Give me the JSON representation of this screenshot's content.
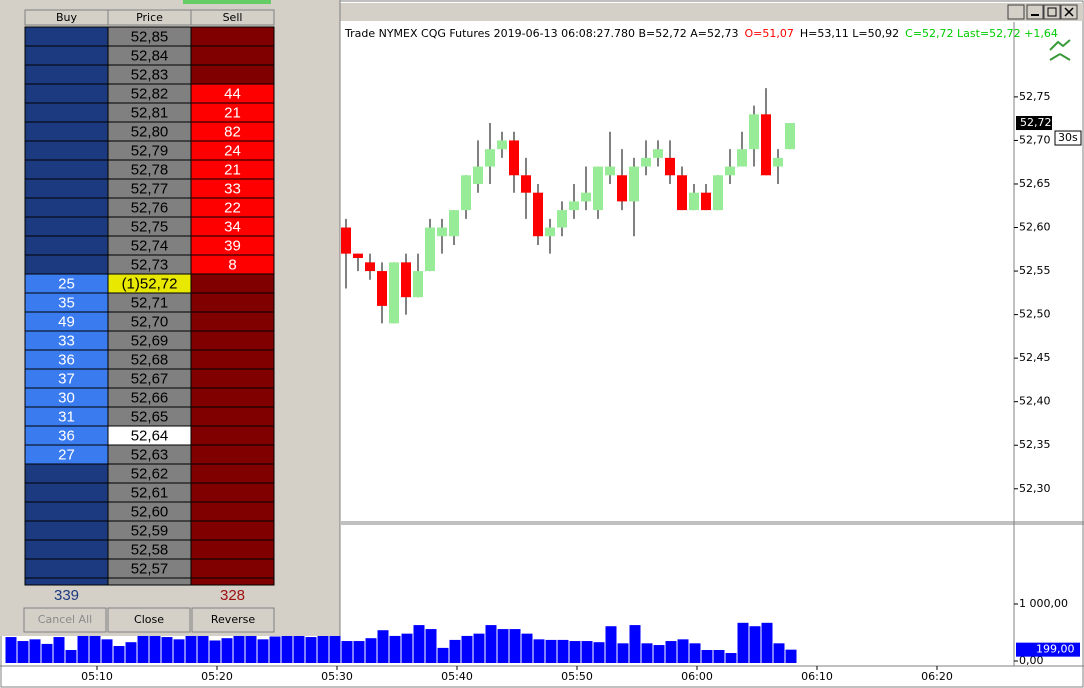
{
  "ladder": {
    "headers": [
      "Buy",
      "Price",
      "Sell"
    ],
    "rows": [
      {
        "buy": null,
        "price": "52,85",
        "sell": null
      },
      {
        "buy": null,
        "price": "52,84",
        "sell": null
      },
      {
        "buy": null,
        "price": "52,83",
        "sell": null
      },
      {
        "buy": null,
        "price": "52,82",
        "sell": 44
      },
      {
        "buy": null,
        "price": "52,81",
        "sell": 21
      },
      {
        "buy": null,
        "price": "52,80",
        "sell": 82
      },
      {
        "buy": null,
        "price": "52,79",
        "sell": 24
      },
      {
        "buy": null,
        "price": "52,78",
        "sell": 21
      },
      {
        "buy": null,
        "price": "52,77",
        "sell": 33
      },
      {
        "buy": null,
        "price": "52,76",
        "sell": 22
      },
      {
        "buy": null,
        "price": "52,75",
        "sell": 34
      },
      {
        "buy": null,
        "price": "52,74",
        "sell": 39
      },
      {
        "buy": null,
        "price": "52,73",
        "sell": 8
      },
      {
        "buy": 25,
        "price": "(1)52,72",
        "sell": null
      },
      {
        "buy": 35,
        "price": "52,71",
        "sell": null
      },
      {
        "buy": 49,
        "price": "52,70",
        "sell": null
      },
      {
        "buy": 33,
        "price": "52,69",
        "sell": null
      },
      {
        "buy": 36,
        "price": "52,68",
        "sell": null
      },
      {
        "buy": 37,
        "price": "52,67",
        "sell": null
      },
      {
        "buy": 30,
        "price": "52,66",
        "sell": null
      },
      {
        "buy": 31,
        "price": "52,65",
        "sell": null
      },
      {
        "buy": 36,
        "price": "52,64",
        "sell": null
      },
      {
        "buy": 27,
        "price": "52,63",
        "sell": null
      },
      {
        "buy": null,
        "price": "52,62",
        "sell": null
      },
      {
        "buy": null,
        "price": "52,61",
        "sell": null
      },
      {
        "buy": null,
        "price": "52,60",
        "sell": null
      },
      {
        "buy": null,
        "price": "52,59",
        "sell": null
      },
      {
        "buy": null,
        "price": "52,58",
        "sell": null
      },
      {
        "buy": null,
        "price": "52,57",
        "sell": null
      }
    ],
    "total_buy": 339,
    "total_sell": 328,
    "buttons": [
      "Cancel All",
      "Close",
      "Reverse"
    ]
  },
  "chart": {
    "header": [
      {
        "text": "Trade  NYMEX  CQG  Futures  2019-06-13  06:08:27.780  B=52,72  A=52,73",
        "color": "#000000"
      },
      {
        "text": "O=51,07",
        "color": "#ff0000"
      },
      {
        "text": "H=53,11  L=50,92",
        "color": "#000000"
      },
      {
        "text": "C=52,72  Last=52,72  +1,64",
        "color": "#00cc00"
      }
    ],
    "ylim": [
      52.263,
      52.836
    ],
    "yticks": [
      {
        "value": 52.75,
        "label": "52,75"
      },
      {
        "value": 52.7,
        "label": "52,70"
      },
      {
        "value": 52.65,
        "label": "52,65"
      },
      {
        "value": 52.6,
        "label": "52,60"
      },
      {
        "value": 52.55,
        "label": "52,55"
      },
      {
        "value": 52.5,
        "label": "52,50"
      },
      {
        "value": 52.45,
        "label": "52,45"
      },
      {
        "value": 52.4,
        "label": "52,40"
      },
      {
        "value": 52.35,
        "label": "52,35"
      },
      {
        "value": 52.3,
        "label": "52,30"
      }
    ],
    "last_price": {
      "value": 52.72,
      "label": "52,72"
    },
    "interval": "30s",
    "up_color": "#98ec98",
    "down_color": "#ff0000",
    "candles": [
      {
        "open": 52.6,
        "high": 52.61,
        "low": 52.53,
        "close": 52.57
      },
      {
        "open": 52.57,
        "high": 52.57,
        "low": 52.55,
        "close": 52.565
      },
      {
        "open": 52.56,
        "high": 52.57,
        "low": 52.54,
        "close": 52.55
      },
      {
        "open": 52.55,
        "high": 52.56,
        "low": 52.49,
        "close": 52.51
      },
      {
        "open": 52.49,
        "high": 52.56,
        "low": 52.49,
        "close": 52.56
      },
      {
        "open": 52.56,
        "high": 52.57,
        "low": 52.5,
        "close": 52.52
      },
      {
        "open": 52.52,
        "high": 52.57,
        "low": 52.52,
        "close": 52.55
      },
      {
        "open": 52.55,
        "high": 52.61,
        "low": 52.55,
        "close": 52.6
      },
      {
        "open": 52.59,
        "high": 52.61,
        "low": 52.57,
        "close": 52.6
      },
      {
        "open": 52.59,
        "high": 52.62,
        "low": 52.58,
        "close": 52.62
      },
      {
        "open": 52.62,
        "high": 52.66,
        "low": 52.61,
        "close": 52.66
      },
      {
        "open": 52.65,
        "high": 52.7,
        "low": 52.64,
        "close": 52.67
      },
      {
        "open": 52.67,
        "high": 52.72,
        "low": 52.65,
        "close": 52.69
      },
      {
        "open": 52.69,
        "high": 52.71,
        "low": 52.68,
        "close": 52.7
      },
      {
        "open": 52.7,
        "high": 52.71,
        "low": 52.64,
        "close": 52.66
      },
      {
        "open": 52.66,
        "high": 52.68,
        "low": 52.61,
        "close": 52.64
      },
      {
        "open": 52.64,
        "high": 52.65,
        "low": 52.58,
        "close": 52.59
      },
      {
        "open": 52.59,
        "high": 52.61,
        "low": 52.57,
        "close": 52.6
      },
      {
        "open": 52.6,
        "high": 52.63,
        "low": 52.59,
        "close": 52.62
      },
      {
        "open": 52.62,
        "high": 52.65,
        "low": 52.61,
        "close": 52.63
      },
      {
        "open": 52.63,
        "high": 52.67,
        "low": 52.62,
        "close": 52.64
      },
      {
        "open": 52.62,
        "high": 52.67,
        "low": 52.61,
        "close": 52.67
      },
      {
        "open": 52.66,
        "high": 52.71,
        "low": 52.65,
        "close": 52.67
      },
      {
        "open": 52.66,
        "high": 52.69,
        "low": 52.62,
        "close": 52.63
      },
      {
        "open": 52.63,
        "high": 52.68,
        "low": 52.59,
        "close": 52.67
      },
      {
        "open": 52.67,
        "high": 52.7,
        "low": 52.66,
        "close": 52.68
      },
      {
        "open": 52.68,
        "high": 52.7,
        "low": 52.67,
        "close": 52.69
      },
      {
        "open": 52.68,
        "high": 52.7,
        "low": 52.65,
        "close": 52.66
      },
      {
        "open": 52.66,
        "high": 52.67,
        "low": 52.62,
        "close": 52.62
      },
      {
        "open": 52.62,
        "high": 52.65,
        "low": 52.62,
        "close": 52.64
      },
      {
        "open": 52.64,
        "high": 52.65,
        "low": 52.62,
        "close": 52.62
      },
      {
        "open": 52.62,
        "high": 52.66,
        "low": 52.62,
        "close": 52.66
      },
      {
        "open": 52.66,
        "high": 52.69,
        "low": 52.65,
        "close": 52.67
      },
      {
        "open": 52.67,
        "high": 52.71,
        "low": 52.67,
        "close": 52.69
      },
      {
        "open": 52.69,
        "high": 52.74,
        "low": 52.67,
        "close": 52.73
      },
      {
        "open": 52.73,
        "high": 52.76,
        "low": 52.66,
        "close": 52.66
      },
      {
        "open": 52.67,
        "high": 52.69,
        "low": 52.65,
        "close": 52.68
      },
      {
        "open": 52.69,
        "high": 52.72,
        "low": 52.69,
        "close": 52.72
      }
    ],
    "volume": {
      "color": "#0000ff",
      "ylim": [
        0,
        2386
      ],
      "yticks": [
        {
          "value": 1000,
          "label": "1 000,00"
        },
        {
          "value": 0,
          "label": "0,00"
        }
      ],
      "last": {
        "value": 199,
        "label": "199,00"
      },
      "values": [
        420,
        350,
        380,
        300,
        420,
        193,
        480,
        500,
        380,
        263,
        330,
        450,
        500,
        420,
        380,
        440,
        470,
        360,
        400,
        450,
        520,
        380,
        430,
        460,
        480,
        420,
        500,
        520,
        350,
        350,
        400,
        540,
        440,
        480,
        630,
        560,
        230,
        370,
        440,
        480,
        630,
        560,
        560,
        480,
        380,
        370,
        370,
        350,
        350,
        330,
        610,
        310,
        630,
        310,
        280,
        350,
        380,
        310,
        193,
        193,
        140,
        670,
        610,
        670,
        310,
        199
      ]
    },
    "time_ticks": [
      "05:10",
      "05:20",
      "05:30",
      "05:40",
      "05:50",
      "06:00",
      "06:10",
      "06:20"
    ]
  }
}
